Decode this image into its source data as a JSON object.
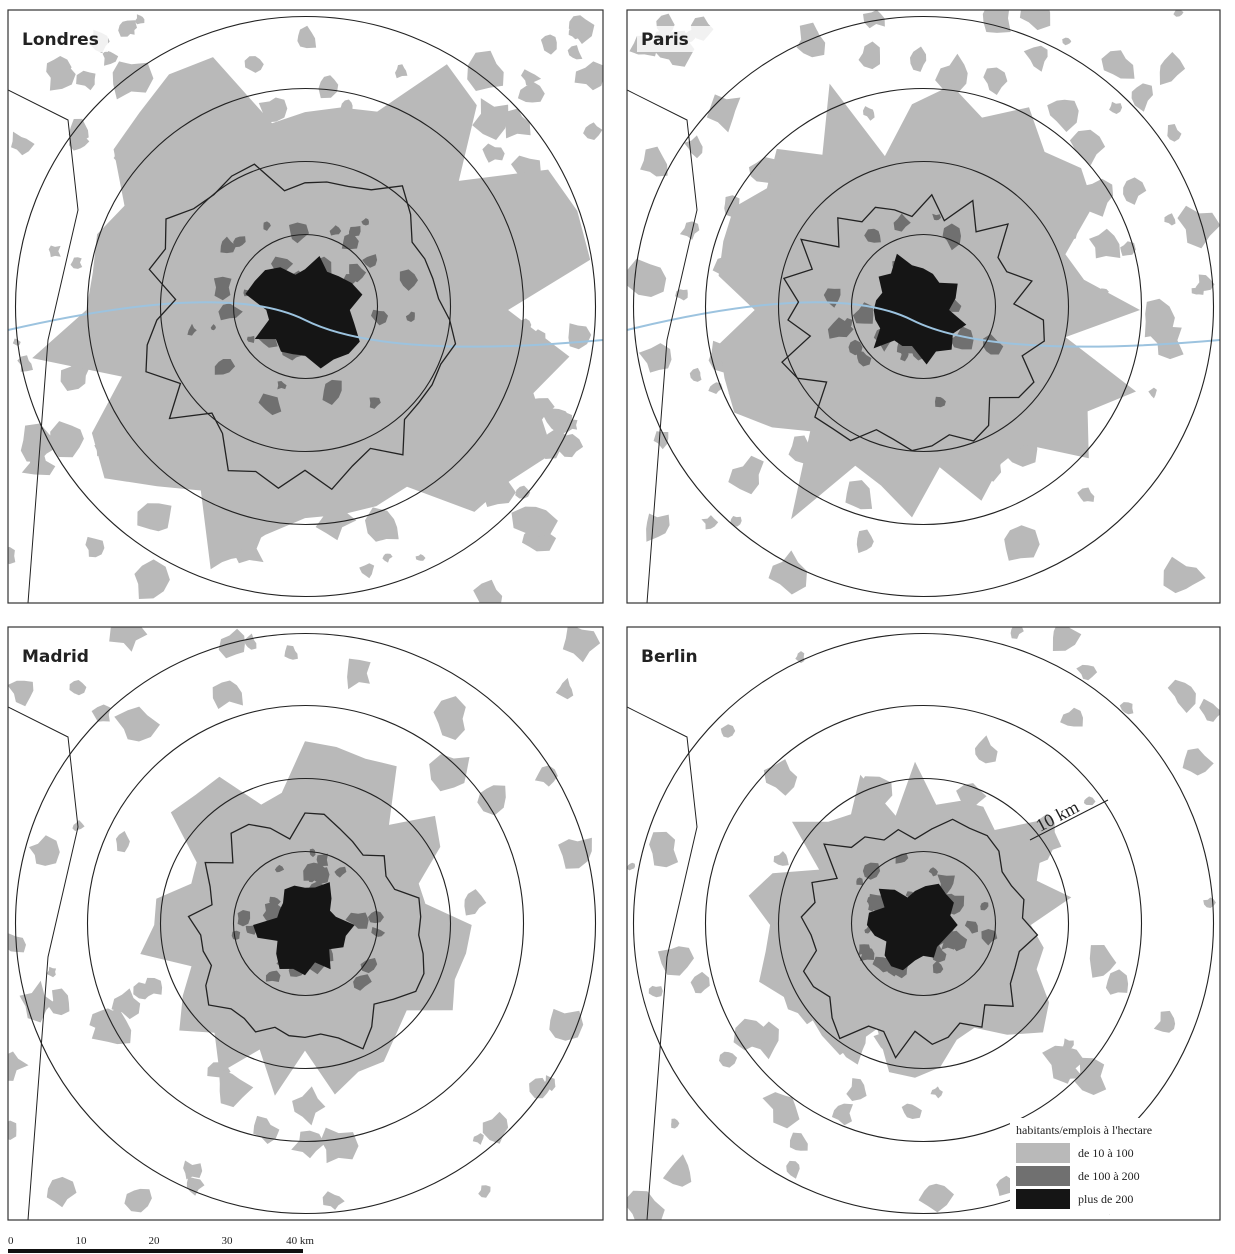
{
  "panels": [
    {
      "title": "Londres"
    },
    {
      "title": "Paris"
    },
    {
      "title": "Madrid"
    },
    {
      "title": "Berlin"
    }
  ],
  "ring_label": "10 km",
  "legend": {
    "title": "habitants/emplois à l'hectare",
    "items": [
      {
        "label": "de 10 à 100",
        "color": "#b9b9b9"
      },
      {
        "label": "de 100 à 200",
        "color": "#707070"
      },
      {
        "label": "plus de 200",
        "color": "#151515"
      }
    ]
  },
  "scale_bar": {
    "labels": [
      "0",
      "10",
      "20",
      "30",
      "40 km"
    ]
  }
}
